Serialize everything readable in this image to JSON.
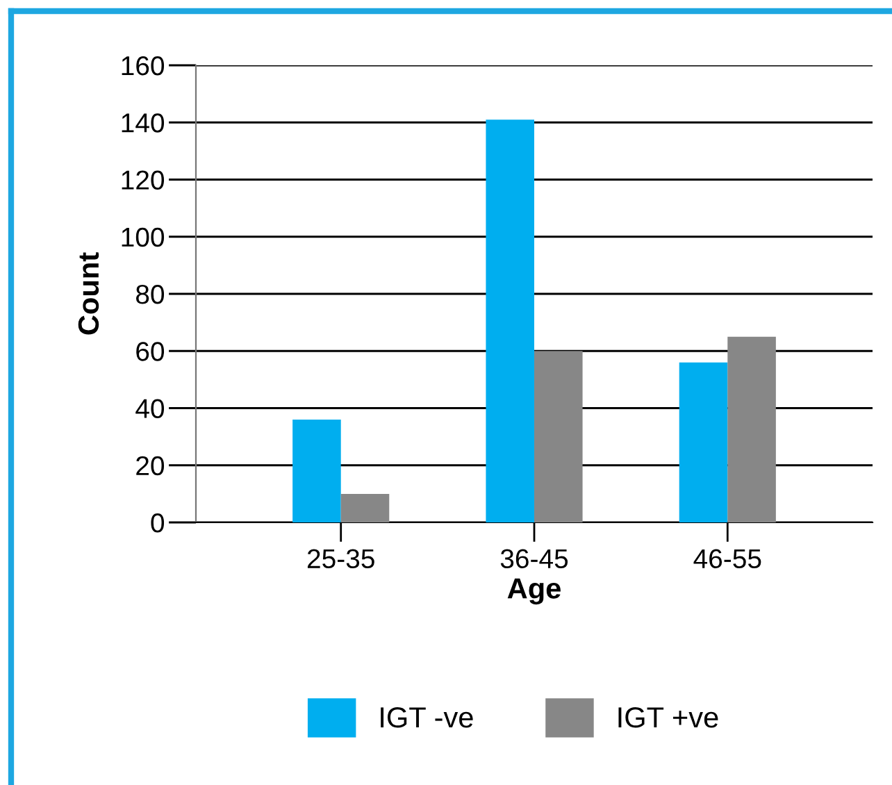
{
  "chart_data": {
    "type": "bar",
    "xlabel": "Age",
    "ylabel": "Count",
    "categories": [
      "25-35",
      "36-45",
      "46-55"
    ],
    "series": [
      {
        "name": "IGT -ve",
        "color": "#00aeef",
        "values": [
          36,
          141,
          56
        ]
      },
      {
        "name": "IGT +ve",
        "color": "#878787",
        "values": [
          10,
          60,
          65
        ]
      }
    ],
    "ylim": [
      0,
      160
    ],
    "yticks": [
      0,
      20,
      40,
      60,
      80,
      100,
      120,
      140,
      160
    ],
    "grid": "y",
    "legend": "bottom"
  }
}
